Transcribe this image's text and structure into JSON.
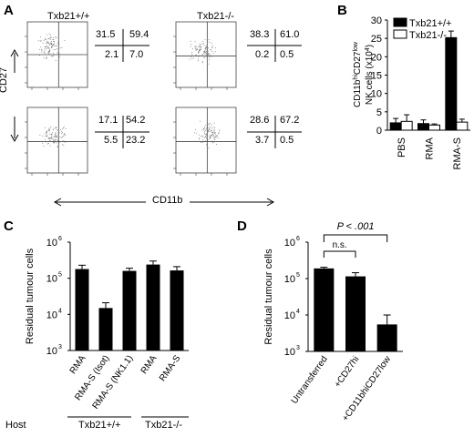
{
  "panels": {
    "A": "A",
    "B": "B",
    "C": "C",
    "D": "D"
  },
  "panel_a": {
    "title_wt": "Txb21+/+",
    "title_ko": "Txb21-/-",
    "ylabel": "CD27",
    "xlabel": "CD11b",
    "quadrants": [
      {
        "q": [
          "31.5",
          "59.4",
          "2.1",
          "7.0"
        ]
      },
      {
        "q": [
          "38.3",
          "61.0",
          "0.2",
          "0.5"
        ]
      },
      {
        "q": [
          "17.1",
          "54.2",
          "5.5",
          "23.2"
        ]
      },
      {
        "q": [
          "28.6",
          "67.2",
          "3.7",
          "0.5"
        ]
      }
    ]
  },
  "chart_data": [
    {
      "id": "B",
      "type": "bar",
      "ylabel": "CD11b^hiCD27^low NK cells (x10^4)",
      "categories": [
        "PBS",
        "RMA",
        "RMA-S"
      ],
      "series": [
        {
          "name": "Txb21+/+",
          "color": "#000000",
          "values": [
            2.0,
            1.8,
            25.2
          ],
          "err": [
            1.2,
            1.0,
            1.8
          ]
        },
        {
          "name": "Txb21-/-",
          "color": "#ffffff",
          "values": [
            2.4,
            1.4,
            2.2
          ],
          "err": [
            1.8,
            0.3,
            0.8
          ]
        }
      ],
      "ylim": [
        0,
        30
      ],
      "yticks": [
        "0",
        "5",
        "10",
        "15",
        "20",
        "25",
        "30"
      ],
      "legend": "top-right"
    },
    {
      "id": "C",
      "type": "bar",
      "scale": "log",
      "ylabel": "Residual tumour cells",
      "categories": [
        "RMA",
        "RMA-S (Isot)",
        "RMA-S (NK1.1)",
        "RMA",
        "RMA-S"
      ],
      "values": [
        180000,
        15000,
        160000,
        240000,
        165000
      ],
      "err_up": [
        50000,
        6000,
        30000,
        60000,
        45000
      ],
      "ylim": [
        1000,
        1000000
      ],
      "yticks": [
        "10",
        "10",
        "10",
        "10"
      ],
      "ytick_exp": [
        "3",
        "4",
        "5",
        "6"
      ],
      "host_label": "Host",
      "groups": [
        "Txb21+/+",
        "Txb21-/-"
      ]
    },
    {
      "id": "D",
      "type": "bar",
      "scale": "log",
      "ylabel": "Residual tumour cells",
      "categories": [
        "Untransferred",
        "+CD27hi",
        "+CD11bhiCD27low"
      ],
      "values": [
        190000,
        115000,
        5500
      ],
      "err_up": [
        15000,
        30000,
        4500
      ],
      "ylim": [
        1000,
        1000000
      ],
      "yticks": [
        "10",
        "10",
        "10",
        "10"
      ],
      "ytick_exp": [
        "3",
        "4",
        "5",
        "6"
      ],
      "annotations": [
        "P < .001",
        "n.s."
      ]
    }
  ]
}
